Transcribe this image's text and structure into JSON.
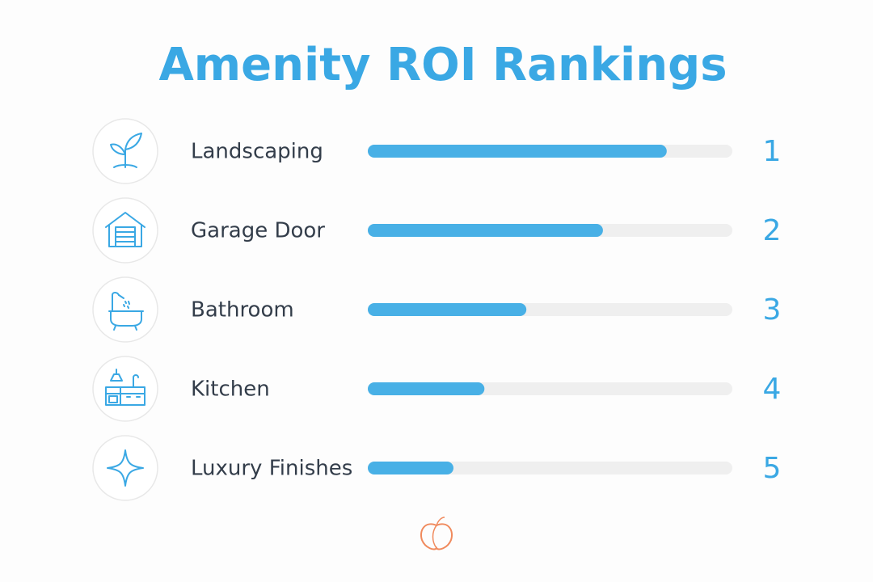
{
  "chart_data": {
    "type": "bar",
    "title": "Amenity ROI Rankings",
    "categories": [
      "Landscaping",
      "Garage Door",
      "Bathroom",
      "Kitchen",
      "Luxury Finishes"
    ],
    "values": [
      82,
      64.5,
      43.5,
      32,
      23.5
    ],
    "ranks": [
      1,
      2,
      3,
      4,
      5
    ],
    "color": "#48b0e6",
    "xlim": [
      0,
      100
    ]
  }
}
